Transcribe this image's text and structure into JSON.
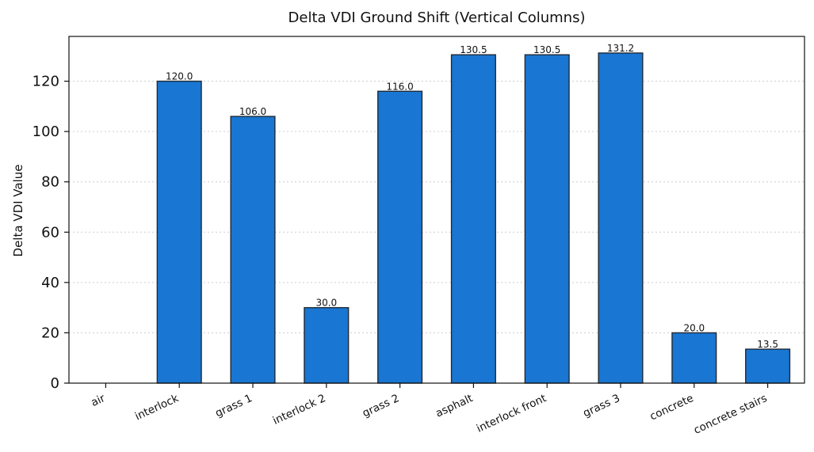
{
  "chart_data": {
    "type": "bar",
    "title": "Delta VDI Ground Shift (Vertical Columns)",
    "xlabel": "",
    "ylabel": "Delta VDI Value",
    "categories": [
      "air",
      "interlock",
      "grass 1",
      "interlock 2",
      "grass 2",
      "asphalt",
      "interlock front",
      "grass 3",
      "concrete",
      "concrete stairs"
    ],
    "values": [
      0.0,
      120.0,
      106.0,
      30.0,
      116.0,
      130.5,
      130.5,
      131.2,
      20.0,
      13.5
    ],
    "data_labels": [
      "",
      "120.0",
      "106.0",
      "30.0",
      "116.0",
      "130.5",
      "130.5",
      "131.2",
      "20.0",
      "13.5"
    ],
    "ylim": [
      0,
      137.8
    ],
    "yticks": [
      0,
      20,
      40,
      60,
      80,
      100,
      120
    ],
    "grid": "y-dotted",
    "bar_color": "#1976d2",
    "edge_color": "#1f2a36"
  }
}
